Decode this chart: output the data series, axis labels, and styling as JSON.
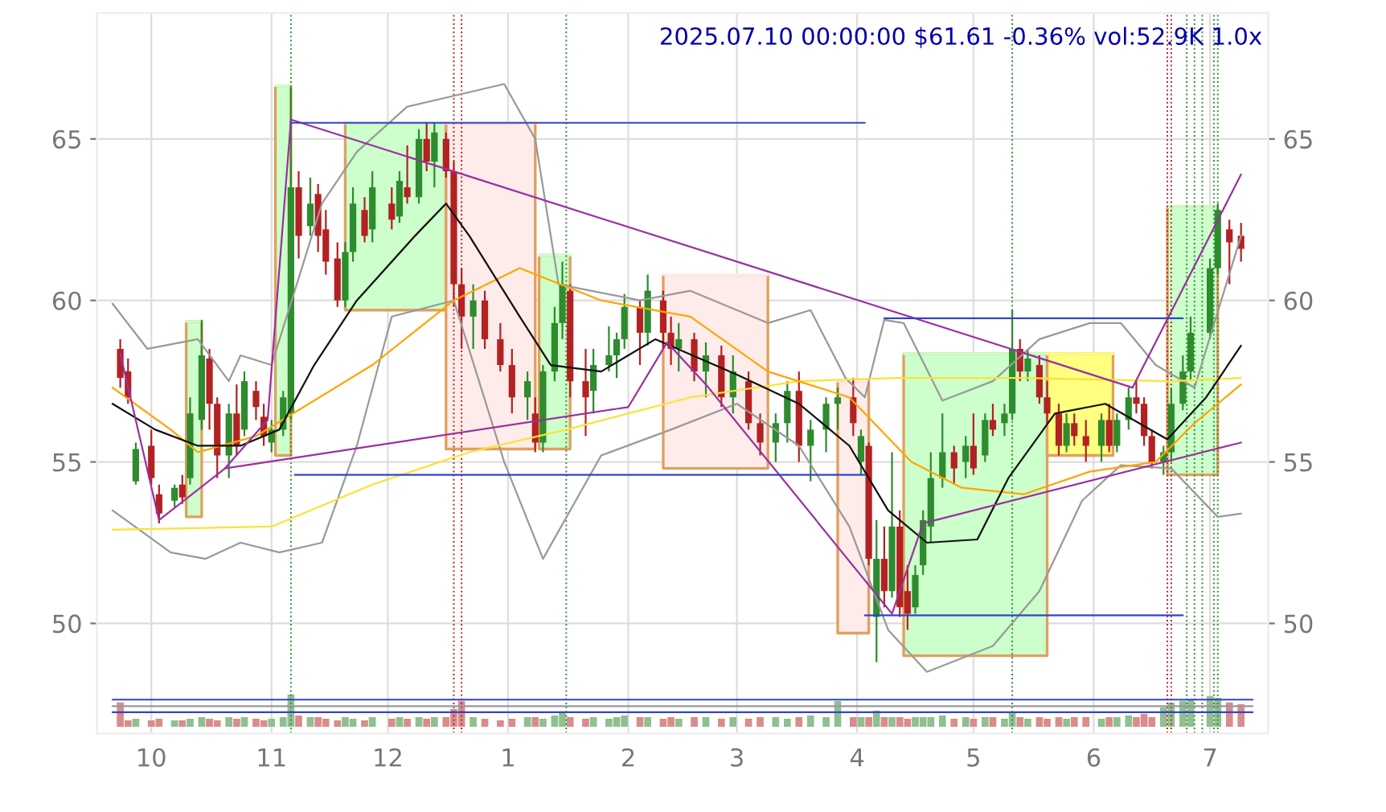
{
  "chart_data": {
    "type": "candlestick",
    "title": "2025.07.10 00:00:00 $61.61 -0.36% vol:52.9K 1.0x",
    "x": [
      "2024-09-23",
      "2024-09-25",
      "2024-09-27",
      "2024-10-01",
      "2024-10-03",
      "2024-10-07",
      "2024-10-09",
      "2024-10-11",
      "2024-10-14",
      "2024-10-16",
      "2024-10-18",
      "2024-10-21",
      "2024-10-23",
      "2024-10-25",
      "2024-10-28",
      "2024-10-30",
      "2024-11-01",
      "2024-11-04",
      "2024-11-06",
      "2024-11-08",
      "2024-11-11",
      "2024-11-13",
      "2024-11-15",
      "2024-11-18",
      "2024-11-20",
      "2024-11-22",
      "2024-11-25",
      "2024-11-27",
      "2024-12-02",
      "2024-12-04",
      "2024-12-06",
      "2024-12-09",
      "2024-12-11",
      "2024-12-13",
      "2024-12-16",
      "2024-12-18",
      "2024-12-20",
      "2024-12-23",
      "2024-12-26",
      "2024-12-30",
      "2025-01-02",
      "2025-01-06",
      "2025-01-08",
      "2025-01-10",
      "2025-01-13",
      "2025-01-15",
      "2025-01-17",
      "2025-01-21",
      "2025-01-23",
      "2025-01-27",
      "2025-01-29",
      "2025-01-31",
      "2025-02-04",
      "2025-02-06",
      "2025-02-10",
      "2025-02-12",
      "2025-02-14",
      "2025-02-18",
      "2025-02-21",
      "2025-02-25",
      "2025-02-28",
      "2025-03-04",
      "2025-03-07",
      "2025-03-11",
      "2025-03-14",
      "2025-03-17",
      "2025-03-20",
      "2025-03-24",
      "2025-03-27",
      "2025-03-31",
      "2025-04-02",
      "2025-04-04",
      "2025-04-06",
      "2025-04-08",
      "2025-04-10",
      "2025-04-12",
      "2025-04-14",
      "2025-04-16",
      "2025-04-18",
      "2025-04-20",
      "2025-04-23",
      "2025-04-26",
      "2025-04-29",
      "2025-05-01",
      "2025-05-04",
      "2025-05-06",
      "2025-05-09",
      "2025-05-11",
      "2025-05-13",
      "2025-05-15",
      "2025-05-18",
      "2025-05-20",
      "2025-05-23",
      "2025-05-25",
      "2025-05-27",
      "2025-05-30",
      "2025-06-03",
      "2025-06-05",
      "2025-06-07",
      "2025-06-10",
      "2025-06-12",
      "2025-06-14",
      "2025-06-16",
      "2025-06-19",
      "2025-06-21",
      "2025-06-24",
      "2025-06-26",
      "2025-07-01",
      "2025-07-03",
      "2025-07-06",
      "2025-07-09"
    ],
    "ohlc": [
      [
        58.5,
        58.8,
        57.3,
        57.6
      ],
      [
        57.8,
        58.2,
        56.8,
        57.0
      ],
      [
        54.4,
        55.6,
        54.3,
        55.4
      ],
      [
        55.5,
        56.0,
        54.3,
        54.5
      ],
      [
        54.0,
        54.3,
        53.1,
        53.4
      ],
      [
        53.8,
        54.3,
        53.6,
        54.2
      ],
      [
        54.3,
        54.6,
        53.7,
        53.9
      ],
      [
        54.5,
        57.0,
        54.3,
        56.5
      ],
      [
        56.3,
        59.4,
        56.0,
        58.3
      ],
      [
        58.2,
        58.5,
        56.0,
        56.8
      ],
      [
        56.8,
        57.0,
        54.5,
        55.2
      ],
      [
        55.2,
        56.8,
        54.5,
        56.5
      ],
      [
        56.5,
        57.4,
        55.2,
        55.5
      ],
      [
        56.0,
        57.8,
        55.8,
        57.5
      ],
      [
        57.2,
        57.5,
        56.3,
        56.7
      ],
      [
        56.4,
        56.8,
        55.5,
        55.8
      ],
      [
        55.6,
        56.3,
        55.3,
        56.0
      ],
      [
        56.0,
        57.2,
        55.8,
        57.0
      ],
      [
        56.5,
        66.6,
        56.3,
        63.5
      ],
      [
        63.5,
        64.0,
        61.3,
        62.0
      ],
      [
        62.3,
        63.8,
        62.0,
        63.0
      ],
      [
        63.3,
        63.6,
        61.5,
        62.0
      ],
      [
        62.2,
        62.8,
        60.8,
        61.2
      ],
      [
        61.3,
        61.8,
        59.8,
        60.0
      ],
      [
        60.0,
        61.8,
        59.8,
        61.5
      ],
      [
        61.5,
        63.5,
        61.2,
        63.0
      ],
      [
        62.8,
        63.2,
        61.8,
        62.0
      ],
      [
        62.2,
        64.0,
        61.8,
        63.5
      ],
      [
        63.0,
        63.5,
        62.2,
        62.5
      ],
      [
        62.6,
        64.0,
        62.4,
        63.7
      ],
      [
        63.5,
        64.8,
        63.0,
        63.2
      ],
      [
        63.2,
        65.3,
        63.0,
        65.0
      ],
      [
        65.0,
        65.5,
        64.0,
        64.3
      ],
      [
        64.3,
        65.5,
        63.5,
        65.2
      ],
      [
        65.0,
        65.2,
        63.8,
        64.0
      ],
      [
        64.0,
        64.3,
        59.8,
        60.5
      ],
      [
        60.5,
        61.0,
        58.5,
        59.5
      ],
      [
        59.5,
        60.5,
        58.5,
        60.0
      ],
      [
        60.0,
        60.3,
        58.5,
        58.8
      ],
      [
        58.8,
        59.3,
        57.8,
        58.0
      ],
      [
        58.0,
        58.5,
        56.5,
        57.0
      ],
      [
        57.0,
        57.8,
        56.3,
        57.5
      ],
      [
        56.5,
        57.0,
        55.3,
        55.6
      ],
      [
        55.6,
        58.0,
        55.3,
        57.8
      ],
      [
        57.8,
        59.8,
        57.5,
        59.3
      ],
      [
        59.3,
        61.2,
        58.8,
        60.5
      ],
      [
        60.3,
        60.5,
        57.0,
        57.5
      ],
      [
        57.5,
        58.5,
        55.8,
        57.0
      ],
      [
        57.2,
        58.5,
        56.5,
        58.0
      ],
      [
        58.0,
        59.2,
        57.8,
        58.3
      ],
      [
        58.3,
        59.0,
        57.6,
        58.8
      ],
      [
        58.8,
        60.2,
        58.5,
        59.8
      ],
      [
        59.8,
        60.0,
        58.0,
        59.0
      ],
      [
        59.0,
        60.8,
        58.6,
        60.3
      ],
      [
        60.0,
        60.3,
        58.5,
        59.0
      ],
      [
        59.0,
        59.5,
        58.0,
        58.5
      ],
      [
        58.5,
        59.3,
        57.8,
        58.8
      ],
      [
        58.8,
        59.0,
        57.5,
        57.8
      ],
      [
        57.8,
        58.7,
        57.0,
        58.3
      ],
      [
        58.3,
        58.6,
        56.7,
        57.0
      ],
      [
        57.0,
        58.3,
        56.5,
        57.8
      ],
      [
        57.5,
        57.8,
        56.0,
        56.2
      ],
      [
        56.2,
        56.5,
        55.2,
        55.6
      ],
      [
        55.6,
        56.5,
        55.0,
        56.2
      ],
      [
        56.2,
        57.5,
        55.6,
        57.2
      ],
      [
        57.2,
        57.8,
        55.0,
        55.5
      ],
      [
        55.5,
        56.3,
        54.4,
        56.0
      ],
      [
        56.0,
        57.0,
        55.3,
        56.8
      ],
      [
        56.8,
        57.3,
        56.0,
        57.0
      ],
      [
        57.0,
        57.6,
        55.8,
        56.2
      ],
      [
        55.0,
        56.0,
        54.6,
        55.8
      ],
      [
        55.5,
        55.6,
        51.8,
        52.0
      ],
      [
        50.2,
        53.2,
        48.8,
        52.0
      ],
      [
        52.0,
        53.0,
        50.5,
        51.0
      ],
      [
        51.0,
        55.3,
        50.8,
        53.0
      ],
      [
        53.0,
        53.5,
        50.2,
        50.5
      ],
      [
        51.0,
        51.8,
        49.8,
        50.3
      ],
      [
        50.5,
        51.8,
        50.3,
        51.5
      ],
      [
        51.8,
        53.5,
        51.5,
        53.2
      ],
      [
        53.0,
        55.3,
        52.5,
        54.5
      ],
      [
        54.5,
        56.5,
        54.2,
        55.3
      ],
      [
        55.3,
        55.5,
        54.3,
        54.8
      ],
      [
        55.0,
        55.8,
        54.5,
        55.5
      ],
      [
        55.5,
        56.5,
        54.6,
        54.8
      ],
      [
        55.2,
        56.5,
        55.0,
        56.3
      ],
      [
        56.3,
        56.8,
        55.8,
        56.0
      ],
      [
        56.2,
        56.8,
        55.8,
        56.5
      ],
      [
        56.5,
        59.7,
        56.3,
        58.5
      ],
      [
        58.5,
        58.8,
        57.5,
        57.8
      ],
      [
        57.8,
        58.5,
        57.5,
        58.2
      ],
      [
        58.0,
        58.3,
        56.8,
        57.0
      ],
      [
        57.0,
        57.5,
        56.2,
        56.5
      ],
      [
        56.5,
        56.8,
        55.2,
        55.5
      ],
      [
        55.5,
        56.5,
        55.3,
        56.2
      ],
      [
        56.2,
        56.5,
        55.5,
        55.8
      ],
      [
        55.8,
        56.3,
        55.0,
        55.5
      ],
      [
        55.5,
        56.5,
        55.0,
        56.3
      ],
      [
        56.3,
        56.8,
        55.3,
        55.5
      ],
      [
        55.5,
        56.5,
        55.3,
        56.3
      ],
      [
        56.3,
        57.3,
        56.0,
        57.0
      ],
      [
        57.0,
        57.5,
        56.5,
        56.8
      ],
      [
        56.8,
        57.0,
        55.5,
        55.8
      ],
      [
        55.8,
        56.0,
        54.8,
        55.0
      ],
      [
        55.0,
        55.5,
        54.6,
        55.3
      ],
      [
        55.3,
        57.3,
        55.0,
        56.8
      ],
      [
        56.8,
        58.3,
        56.6,
        57.8
      ],
      [
        57.8,
        59.5,
        57.5,
        59.0
      ],
      [
        59.0,
        61.3,
        58.8,
        61.0
      ],
      [
        61.0,
        63.0,
        60.8,
        62.8
      ],
      [
        62.2,
        62.5,
        60.5,
        61.8
      ],
      [
        62.0,
        62.4,
        61.2,
        61.6
      ]
    ],
    "colors": [
      "#b22222",
      "#b22222",
      "#2e8b2e",
      "#b22222",
      "#b22222",
      "#2e8b2e",
      "#b22222",
      "#2e8b2e",
      "#2e8b2e",
      "#b22222",
      "#b22222",
      "#2e8b2e",
      "#b22222",
      "#2e8b2e",
      "#b22222",
      "#b22222",
      "#2e8b2e",
      "#2e8b2e",
      "#2e8b2e",
      "#b22222",
      "#2e8b2e",
      "#b22222",
      "#b22222",
      "#b22222",
      "#2e8b2e",
      "#2e8b2e",
      "#b22222",
      "#2e8b2e",
      "#b22222",
      "#2e8b2e",
      "#b22222",
      "#2e8b2e",
      "#b22222",
      "#2e8b2e",
      "#b22222",
      "#b22222",
      "#b22222",
      "#2e8b2e",
      "#b22222",
      "#b22222",
      "#b22222",
      "#2e8b2e",
      "#b22222",
      "#2e8b2e",
      "#2e8b2e",
      "#2e8b2e",
      "#b22222",
      "#b22222",
      "#2e8b2e",
      "#2e8b2e",
      "#2e8b2e",
      "#2e8b2e",
      "#b22222",
      "#2e8b2e",
      "#b22222",
      "#b22222",
      "#2e8b2e",
      "#b22222",
      "#2e8b2e",
      "#b22222",
      "#2e8b2e",
      "#b22222",
      "#b22222",
      "#2e8b2e",
      "#2e8b2e",
      "#b22222",
      "#2e8b2e",
      "#2e8b2e",
      "#2e8b2e",
      "#b22222",
      "#2e8b2e",
      "#b22222",
      "#2e8b2e",
      "#b22222",
      "#2e8b2e",
      "#b22222",
      "#b22222",
      "#2e8b2e",
      "#2e8b2e",
      "#2e8b2e",
      "#2e8b2e",
      "#b22222",
      "#2e8b2e",
      "#b22222",
      "#2e8b2e",
      "#b22222",
      "#2e8b2e",
      "#2e8b2e",
      "#b22222",
      "#2e8b2e",
      "#b22222",
      "#b22222",
      "#b22222",
      "#2e8b2e",
      "#b22222",
      "#b22222",
      "#2e8b2e",
      "#b22222",
      "#2e8b2e",
      "#2e8b2e",
      "#b22222",
      "#b22222",
      "#b22222",
      "#2e8b2e",
      "#2e8b2e",
      "#2e8b2e",
      "#2e8b2e",
      "#2e8b2e",
      "#2e8b2e",
      "#b22222",
      "#b22222"
    ],
    "series": [
      {
        "type": "line",
        "x": [
          "2024-10-10",
          "2024-10-14"
        ],
        "values": [
          59.35,
          59.35
        ],
        "lower": [
          53.3,
          53.3
        ],
        "upper": [
          59.35,
          59.35
        ],
        "color": "#ccffcc"
      },
      {
        "type": "line",
        "x": [
          "2024-11-02",
          "2024-11-06"
        ],
        "values": [
          66.65,
          66.65
        ],
        "lower": [
          55.2,
          55.2
        ],
        "upper": [
          66.65,
          66.65
        ],
        "color": "#ccffcc"
      },
      {
        "type": "line",
        "x": [
          "2024-11-20",
          "2024-12-16"
        ],
        "values": [
          65.5,
          65.5
        ],
        "lower": [
          59.7,
          59.7
        ],
        "upper": [
          65.5,
          65.5
        ],
        "color": "#ccffcc"
      },
      {
        "type": "line",
        "x": [
          "2024-12-16",
          "2025-01-08"
        ],
        "values": [
          65.5,
          65.5
        ],
        "lower": [
          55.4,
          55.4
        ],
        "upper": [
          65.5,
          65.5
        ],
        "color": "#fdecea"
      },
      {
        "type": "line",
        "x": [
          "2025-01-09",
          "2025-01-17"
        ],
        "values": [
          61.4,
          61.4
        ],
        "lower": [
          55.4,
          55.4
        ],
        "upper": [
          61.4,
          61.4
        ],
        "color": "#ccffcc"
      },
      {
        "type": "line",
        "x": [
          "2025-02-10",
          "2025-03-09"
        ],
        "values": [
          60.8,
          60.8
        ],
        "lower": [
          54.8,
          54.8
        ],
        "upper": [
          60.8,
          60.8
        ],
        "color": "#fdecea"
      },
      {
        "type": "line",
        "x": [
          "2025-03-27",
          "2025-04-04"
        ],
        "values": [
          57.5,
          57.5
        ],
        "lower": [
          49.7,
          49.7
        ],
        "upper": [
          57.5,
          57.5
        ],
        "color": "#fdecea"
      },
      {
        "type": "line",
        "x": [
          "2025-04-13",
          "2025-05-20"
        ],
        "values": [
          58.35,
          58.35
        ],
        "lower": [
          49.0,
          49.0
        ],
        "upper": [
          58.35,
          58.35
        ],
        "color": "#ccffcc"
      },
      {
        "type": "line",
        "x": [
          "2025-05-20",
          "2025-06-06"
        ],
        "values": [
          58.35,
          58.35
        ],
        "lower": [
          55.2,
          55.2
        ],
        "upper": [
          58.35,
          58.35
        ],
        "color": "#ffff80"
      },
      {
        "type": "line",
        "x": [
          "2025-06-20",
          "2025-07-03"
        ],
        "values": [
          62.9,
          62.9
        ],
        "lower": [
          54.6,
          54.6
        ],
        "upper": [
          62.9,
          62.9
        ],
        "color": "#ccffcc"
      },
      {
        "type": "line",
        "color": "#999999",
        "x": [
          "2024-09-21",
          "2024-09-30",
          "2024-10-13",
          "2024-10-21",
          "2024-10-24",
          "2024-11-01",
          "2024-11-14",
          "2024-11-23",
          "2024-12-06",
          "2024-12-31",
          "2025-01-08",
          "2025-01-14",
          "2025-02-04",
          "2025-02-17",
          "2025-03-09",
          "2025-03-20",
          "2025-03-29",
          "2025-04-03",
          "2025-04-08",
          "2025-04-13",
          "2025-04-23",
          "2025-05-06",
          "2025-05-18",
          "2025-05-31",
          "2025-06-08",
          "2025-06-17",
          "2025-06-27",
          "2025-07-09"
        ],
        "values": [
          59.9,
          58.5,
          58.8,
          57.5,
          58.3,
          58.0,
          63.0,
          64.6,
          66.0,
          66.7,
          65.0,
          60.5,
          60.0,
          60.3,
          59.3,
          59.7,
          57.6,
          57.0,
          59.4,
          59.3,
          56.9,
          57.5,
          58.8,
          59.3,
          59.3,
          58.0,
          57.3,
          62.0
        ]
      },
      {
        "type": "line",
        "color": "#999999",
        "x": [
          "2024-09-21",
          "2024-10-06",
          "2024-10-15",
          "2024-10-24",
          "2024-11-03",
          "2024-11-14",
          "2024-11-23",
          "2024-12-02",
          "2024-12-18",
          "2024-12-31",
          "2025-01-10",
          "2025-01-25",
          "2025-02-12",
          "2025-03-01",
          "2025-03-17",
          "2025-03-30",
          "2025-04-09",
          "2025-04-19",
          "2025-05-06",
          "2025-05-18",
          "2025-05-29",
          "2025-06-08",
          "2025-06-21",
          "2025-07-03",
          "2025-07-09"
        ],
        "values": [
          53.5,
          52.2,
          52.0,
          52.5,
          52.2,
          52.5,
          55.5,
          59.5,
          60.0,
          55.0,
          52.0,
          55.2,
          56.0,
          56.8,
          55.5,
          53.0,
          49.8,
          48.5,
          49.3,
          51.0,
          53.8,
          54.9,
          54.8,
          53.3,
          53.4
        ]
      },
      {
        "type": "line",
        "color": "#ffe135",
        "x": [
          "2024-09-21",
          "2024-11-01",
          "2024-11-27",
          "2024-12-22",
          "2025-01-16",
          "2025-02-17",
          "2025-03-17",
          "2025-04-11",
          "2025-05-14",
          "2025-06-21",
          "2025-07-09"
        ],
        "values": [
          52.9,
          53.0,
          54.3,
          55.3,
          56.0,
          57.0,
          57.5,
          57.6,
          57.6,
          57.5,
          57.6
        ]
      },
      {
        "type": "line",
        "color": "#ffa500",
        "x": [
          "2024-09-21",
          "2024-10-06",
          "2024-10-13",
          "2024-10-28",
          "2024-11-27",
          "2024-12-18",
          "2025-01-04",
          "2025-01-25",
          "2025-02-17",
          "2025-03-09",
          "2025-03-30",
          "2025-04-15",
          "2025-04-28",
          "2025-05-14",
          "2025-05-31",
          "2025-06-17",
          "2025-06-27",
          "2025-07-09"
        ],
        "values": [
          57.3,
          56.0,
          55.3,
          55.8,
          58.0,
          60.0,
          61.0,
          60.0,
          59.5,
          57.8,
          57.0,
          55.0,
          54.2,
          54.0,
          54.7,
          55.0,
          56.2,
          57.4
        ]
      },
      {
        "type": "line",
        "color": "#111111",
        "x": [
          "2024-09-21",
          "2024-10-02",
          "2024-10-13",
          "2024-10-24",
          "2024-11-03",
          "2024-11-12",
          "2024-11-23",
          "2024-12-08",
          "2024-12-16",
          "2024-12-22",
          "2025-01-04",
          "2025-01-12",
          "2025-01-25",
          "2025-02-08",
          "2025-03-01",
          "2025-03-17",
          "2025-03-30",
          "2025-04-09",
          "2025-04-19",
          "2025-05-02",
          "2025-05-10",
          "2025-05-22",
          "2025-06-04",
          "2025-06-20",
          "2025-06-30",
          "2025-07-09"
        ],
        "values": [
          56.8,
          56.0,
          55.5,
          55.5,
          56.0,
          58.0,
          60.0,
          62.0,
          63.0,
          62.0,
          59.5,
          58.0,
          57.8,
          58.8,
          57.7,
          56.8,
          55.5,
          53.5,
          52.5,
          52.6,
          54.5,
          56.5,
          56.8,
          55.7,
          57.0,
          58.6
        ]
      },
      {
        "type": "line",
        "color": "#9b30a0",
        "x": [
          "2024-09-23",
          "2024-10-03",
          "2024-10-20",
          "2024-10-31",
          "2024-11-06"
        ],
        "values": [
          58.35,
          53.2,
          54.8,
          56.3,
          65.6
        ]
      },
      {
        "type": "line",
        "color": "#9b30a0",
        "x": [
          "2024-11-06",
          "2025-06-11"
        ],
        "values": [
          65.6,
          57.3
        ]
      },
      {
        "type": "line",
        "color": "#9b30a0",
        "x": [
          "2024-10-20",
          "2025-02-01",
          "2025-02-11",
          "2025-02-21",
          "2025-04-10",
          "2025-04-18",
          "2025-07-09"
        ],
        "values": [
          54.8,
          56.7,
          58.7,
          57.4,
          50.3,
          53.1,
          55.6
        ]
      },
      {
        "type": "line",
        "color": "#9b30a0",
        "x": [
          "2025-06-11",
          "2025-07-09"
        ],
        "values": [
          57.3,
          63.9
        ]
      },
      {
        "type": "line",
        "color": "#3344cc",
        "x": [
          "2024-11-06",
          "2025-04-03"
        ],
        "values": [
          65.5,
          65.5
        ]
      },
      {
        "type": "line",
        "color": "#3344cc",
        "x": [
          "2024-11-07",
          "2025-04-03"
        ],
        "values": [
          54.6,
          54.6
        ]
      },
      {
        "type": "line",
        "color": "#3344cc",
        "x": [
          "2025-04-08",
          "2025-06-24"
        ],
        "values": [
          59.45,
          59.45
        ]
      },
      {
        "type": "line",
        "color": "#3344cc",
        "x": [
          "2025-04-03",
          "2025-06-24"
        ],
        "values": [
          50.25,
          50.25
        ]
      },
      {
        "type": "line",
        "color": "#3344cc",
        "x": [
          "2024-09-21",
          "2025-07-12"
        ],
        "values": [
          47.64,
          47.64
        ]
      },
      {
        "type": "line",
        "color": "#999999",
        "x": [
          "2024-09-21",
          "2025-07-12"
        ],
        "values": [
          47.44,
          47.44
        ]
      },
      {
        "type": "line",
        "color": "#3344cc",
        "x": [
          "2024-09-21",
          "2025-07-12"
        ],
        "values": [
          47.25,
          47.25
        ]
      },
      {
        "type": "bar",
        "values": [
          0.75,
          0.2,
          0.25,
          0.2,
          0.25,
          0.2,
          0.2,
          0.25,
          0.3,
          0.25,
          0.2,
          0.3,
          0.25,
          0.3,
          0.25,
          0.2,
          0.25,
          0.3,
          1.0,
          0.35,
          0.3,
          0.3,
          0.25,
          0.2,
          0.3,
          0.25,
          0.2,
          0.3,
          0.25,
          0.3,
          0.25,
          0.3,
          0.25,
          0.3,
          0.3,
          0.55,
          0.8,
          0.3,
          0.25,
          0.2,
          0.25,
          0.3,
          0.3,
          0.25,
          0.35,
          0.45,
          0.3,
          0.25,
          0.3,
          0.25,
          0.3,
          0.35,
          0.3,
          0.3,
          0.25,
          0.3,
          0.25,
          0.3,
          0.3,
          0.25,
          0.3,
          0.25,
          0.3,
          0.3,
          0.25,
          0.3,
          0.35,
          0.3,
          0.8,
          0.3,
          0.3,
          0.3,
          0.5,
          0.3,
          0.3,
          0.3,
          0.25,
          0.3,
          0.3,
          0.3,
          0.35,
          0.25,
          0.3,
          0.25,
          0.3,
          0.3,
          0.25,
          0.45,
          0.3,
          0.25,
          0.3,
          0.25,
          0.3,
          0.25,
          0.3,
          0.3,
          0.25,
          0.3,
          0.3,
          0.35,
          0.3,
          0.4,
          0.3,
          0.6,
          0.75,
          0.8,
          0.85,
          0.95,
          0.9,
          0.75,
          0.7
        ],
        "base": [
          46.8,
          46.8,
          46.8,
          46.8,
          46.8,
          46.8,
          46.8,
          46.8,
          46.8,
          46.8,
          46.8,
          46.8,
          46.8,
          46.8,
          46.8,
          46.8,
          46.8,
          46.8,
          46.8,
          46.8,
          46.8,
          46.8,
          46.8,
          46.8,
          46.8,
          46.8,
          46.8,
          46.8,
          46.8,
          46.8,
          46.8,
          46.8,
          46.8,
          46.8,
          46.8,
          46.8,
          46.8,
          46.8,
          46.8,
          46.8,
          46.8,
          46.8,
          46.8,
          46.8,
          46.8,
          46.8,
          46.8,
          46.8,
          46.8,
          46.8,
          46.8,
          46.8,
          46.8,
          46.8,
          46.8,
          46.8,
          46.8,
          46.8,
          46.8,
          46.8,
          46.8,
          46.8,
          46.8,
          46.8,
          46.8,
          46.8,
          46.8,
          46.8,
          46.8,
          46.8,
          46.8,
          46.8,
          46.8,
          46.8,
          46.8,
          46.8,
          46.8,
          46.8,
          46.8,
          46.8,
          46.8,
          46.8,
          46.8,
          46.8,
          46.8,
          46.8,
          46.8,
          46.8,
          46.8,
          46.8,
          46.8,
          46.8,
          46.8,
          46.8,
          46.8,
          46.8,
          46.8,
          46.8,
          46.8,
          46.8,
          46.8,
          46.8,
          46.8,
          46.8,
          46.8,
          46.8,
          46.8,
          46.8,
          46.8,
          46.8,
          46.8
        ],
        "colors": [
          "#d98c8c",
          "#d98c8c",
          "#90c090",
          "#d98c8c",
          "#d98c8c",
          "#90c090",
          "#d98c8c",
          "#90c090",
          "#90c090",
          "#d98c8c",
          "#d98c8c",
          "#90c090",
          "#d98c8c",
          "#90c090",
          "#d98c8c",
          "#d98c8c",
          "#90c090",
          "#90c090",
          "#90c090",
          "#d98c8c",
          "#90c090",
          "#d98c8c",
          "#d98c8c",
          "#d98c8c",
          "#90c090",
          "#90c090",
          "#d98c8c",
          "#90c090",
          "#d98c8c",
          "#90c090",
          "#d98c8c",
          "#90c090",
          "#d98c8c",
          "#90c090",
          "#d98c8c",
          "#d98c8c",
          "#d98c8c",
          "#90c090",
          "#d98c8c",
          "#d98c8c",
          "#d98c8c",
          "#90c090",
          "#d98c8c",
          "#90c090",
          "#90c090",
          "#90c090",
          "#d98c8c",
          "#d98c8c",
          "#90c090",
          "#90c090",
          "#90c090",
          "#90c090",
          "#d98c8c",
          "#90c090",
          "#d98c8c",
          "#d98c8c",
          "#90c090",
          "#d98c8c",
          "#90c090",
          "#d98c8c",
          "#90c090",
          "#d98c8c",
          "#d98c8c",
          "#90c090",
          "#90c090",
          "#d98c8c",
          "#90c090",
          "#90c090",
          "#90c090",
          "#d98c8c",
          "#90c090",
          "#d98c8c",
          "#90c090",
          "#d98c8c",
          "#90c090",
          "#d98c8c",
          "#d98c8c",
          "#90c090",
          "#90c090",
          "#90c090",
          "#90c090",
          "#d98c8c",
          "#90c090",
          "#d98c8c",
          "#90c090",
          "#d98c8c",
          "#90c090",
          "#90c090",
          "#d98c8c",
          "#90c090",
          "#d98c8c",
          "#d98c8c",
          "#d98c8c",
          "#90c090",
          "#d98c8c",
          "#d98c8c",
          "#90c090",
          "#d98c8c",
          "#90c090",
          "#90c090",
          "#d98c8c",
          "#d98c8c",
          "#d98c8c",
          "#90c090",
          "#90c090",
          "#90c090",
          "#90c090",
          "#90c090",
          "#90c090",
          "#d98c8c",
          "#d98c8c"
        ]
      }
    ],
    "ref_lines": [
      {
        "axis": "x",
        "value": "2024-11-06",
        "color": "#2e8b2e",
        "line_style": "dotted"
      },
      {
        "axis": "x",
        "value": "2024-12-18",
        "color": "#b22222",
        "line_style": "dotted"
      },
      {
        "axis": "x",
        "value": "2024-12-20",
        "color": "#b22222",
        "line_style": "dotted"
      },
      {
        "axis": "x",
        "value": "2025-01-16",
        "color": "#2e8b2e",
        "line_style": "dotted"
      },
      {
        "axis": "x",
        "value": "2025-05-11",
        "color": "#2e8b2e",
        "line_style": "dotted"
      },
      {
        "axis": "x",
        "value": "2025-06-20",
        "color": "#b22222",
        "line_style": "dotted"
      },
      {
        "axis": "x",
        "value": "2025-06-21",
        "color": "#b22222",
        "line_style": "dotted"
      },
      {
        "axis": "x",
        "value": "2025-06-25",
        "color": "#2e8b2e",
        "line_style": "dotted"
      },
      {
        "axis": "x",
        "value": "2025-06-27",
        "color": "#2e8b2e",
        "line_style": "dotted"
      },
      {
        "axis": "x",
        "value": "2025-06-29",
        "color": "#2e8b2e",
        "line_style": "dotted"
      },
      {
        "axis": "x",
        "value": "2025-07-02",
        "color": "#2e8b2e",
        "line_style": "dotted"
      },
      {
        "axis": "x",
        "value": "2025-07-03",
        "color": "#2e8b2e",
        "line_style": "dotted"
      }
    ],
    "xlim": [
      "2024-09-17",
      "2025-07-16"
    ],
    "xticks": [
      {
        "value": "2024-10-01",
        "label": "10"
      },
      {
        "value": "2024-11-01",
        "label": "11"
      },
      {
        "value": "2024-12-01",
        "label": "12"
      },
      {
        "value": "2025-01-01",
        "label": "1"
      },
      {
        "value": "2025-02-01",
        "label": "2"
      },
      {
        "value": "2025-03-01",
        "label": "3"
      },
      {
        "value": "2025-04-01",
        "label": "4"
      },
      {
        "value": "2025-05-01",
        "label": "5"
      },
      {
        "value": "2025-06-01",
        "label": "6"
      },
      {
        "value": "2025-07-01",
        "label": "7"
      }
    ],
    "ylim": [
      46.6,
      68.9
    ],
    "yticks": [
      50,
      55,
      60,
      65
    ],
    "y2lim": [
      46.6,
      68.9
    ],
    "y2ticks": [
      50,
      55,
      60,
      65
    ],
    "grid": true
  }
}
